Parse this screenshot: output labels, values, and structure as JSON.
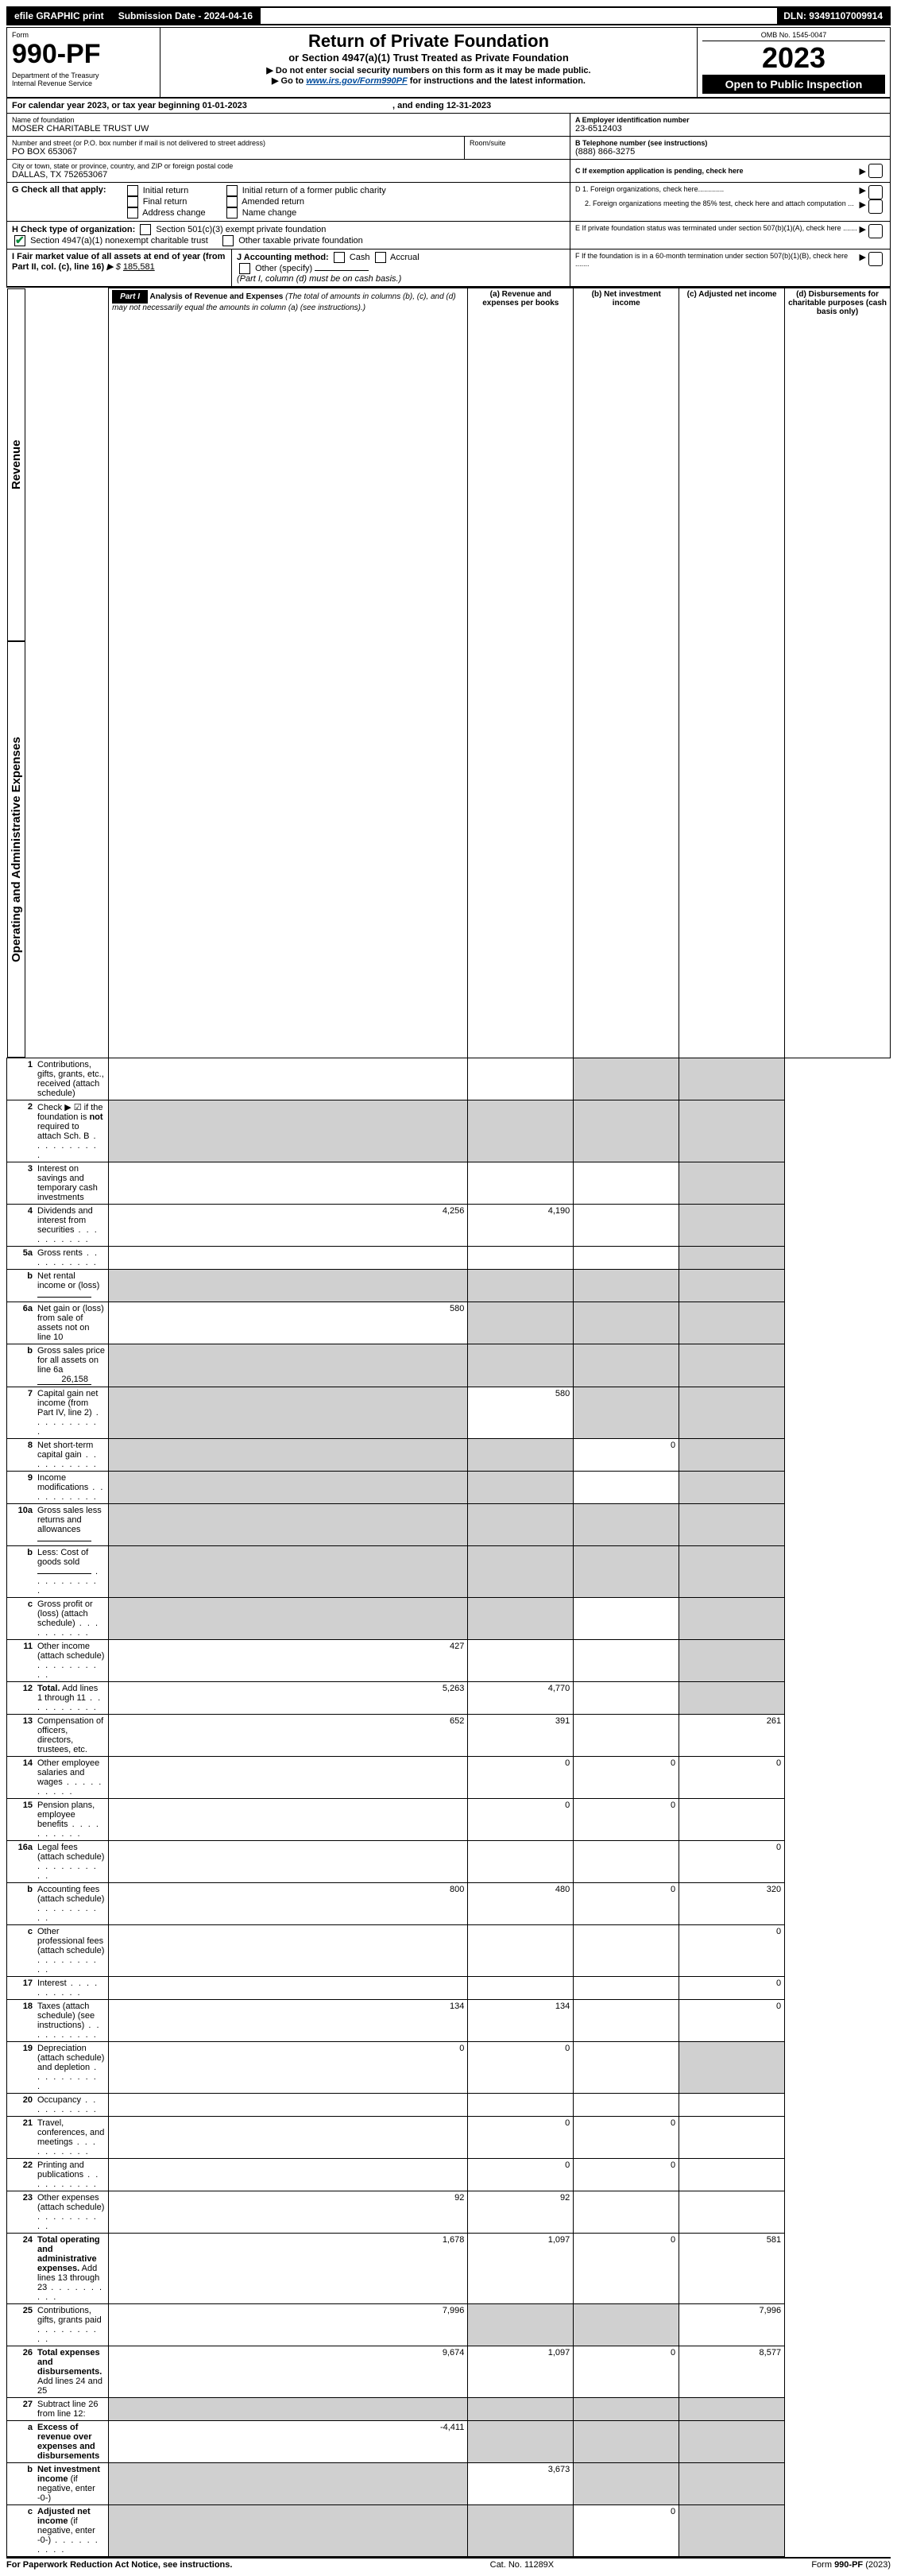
{
  "top": {
    "efile": "efile GRAPHIC print",
    "sub_lbl": "Submission Date - 2024-04-16",
    "dln": "DLN: 93491107009914"
  },
  "header": {
    "form_word": "Form",
    "form_num": "990-PF",
    "dept": "Department of the Treasury",
    "irs": "Internal Revenue Service",
    "title": "Return of Private Foundation",
    "subtitle": "or Section 4947(a)(1) Trust Treated as Private Foundation",
    "instr1": "▶ Do not enter social security numbers on this form as it may be made public.",
    "instr2_a": "▶ Go to ",
    "instr2_link": "www.irs.gov/Form990PF",
    "instr2_b": " for instructions and the latest information.",
    "omb": "OMB No. 1545-0047",
    "year": "2023",
    "open": "Open to Public Inspection"
  },
  "cal": {
    "line": "For calendar year 2023, or tax year beginning 01-01-2023",
    "mid": ", and ending 12-31-2023"
  },
  "addr": {
    "name_lbl": "Name of foundation",
    "name": "MOSER CHARITABLE TRUST UW",
    "street_lbl": "Number and street (or P.O. box number if mail is not delivered to street address)",
    "street": "PO BOX 653067",
    "room_lbl": "Room/suite",
    "city_lbl": "City or town, state or province, country, and ZIP or foreign postal code",
    "city": "DALLAS, TX  752653067"
  },
  "right": {
    "a_lbl": "A Employer identification number",
    "a_val": "23-6512403",
    "b_lbl": "B Telephone number (see instructions)",
    "b_val": "(888) 866-3275",
    "c_lbl": "C If exemption application is pending, check here",
    "d1": "D 1. Foreign organizations, check here.............",
    "d2": "2. Foreign organizations meeting the 85% test, check here and attach computation ...",
    "e": "E  If private foundation status was terminated under section 507(b)(1)(A), check here .......",
    "f": "F  If the foundation is in a 60-month termination under section 507(b)(1)(B), check here .......  "
  },
  "g": {
    "lbl": "G Check all that apply:",
    "o1": "Initial return",
    "o2": "Final return",
    "o3": "Address change",
    "o4": "Initial return of a former public charity",
    "o5": "Amended return",
    "o6": "Name change"
  },
  "h": {
    "lbl": "H Check type of organization:",
    "o1": "Section 501(c)(3) exempt private foundation",
    "o2": "Section 4947(a)(1) nonexempt charitable trust",
    "o3": "Other taxable private foundation"
  },
  "i": {
    "lbl": "I Fair market value of all assets at end of year (from Part II, col. (c), line 16)",
    "val": "185,581"
  },
  "j": {
    "lbl": "J Accounting method:",
    "cash": "Cash",
    "accr": "Accrual",
    "other": "Other (specify)",
    "note": "(Part I, column (d) must be on cash basis.)"
  },
  "part1": {
    "tag": "Part I",
    "title": "Analysis of Revenue and Expenses",
    "note": " (The total of amounts in columns (b), (c), and (d) may not necessarily equal the amounts in column (a) (see instructions).)",
    "col_a": "(a)   Revenue and expenses per books",
    "col_b": "(b)  Net investment income",
    "col_c": "(c)  Adjusted net income",
    "col_d": "(d)  Disbursements for charitable purposes (cash basis only)"
  },
  "side": {
    "rev": "Revenue",
    "exp": "Operating and Administrative Expenses"
  },
  "rows": [
    {
      "n": "1",
      "t": "Contributions, gifts, grants, etc., received (attach schedule)",
      "a": "",
      "b": "",
      "c": "shade",
      "d": "shade"
    },
    {
      "n": "2",
      "t": "Check ▶ ☑ if the foundation is <b>not</b> required to attach Sch. B",
      "a": "shade",
      "b": "shade",
      "c": "shade",
      "d": "shade",
      "dots": true
    },
    {
      "n": "3",
      "t": "Interest on savings and temporary cash investments",
      "a": "",
      "b": "",
      "c": "",
      "d": "shade"
    },
    {
      "n": "4",
      "t": "Dividends and interest from securities",
      "a": "4,256",
      "b": "4,190",
      "c": "",
      "d": "shade",
      "dots": true
    },
    {
      "n": "5a",
      "t": "Gross rents",
      "a": "",
      "b": "",
      "c": "",
      "d": "shade",
      "dots": true
    },
    {
      "n": "b",
      "t": "Net rental income or (loss)  ",
      "a": "shade",
      "b": "shade",
      "c": "shade",
      "d": "shade",
      "inline": true
    },
    {
      "n": "6a",
      "t": "Net gain or (loss) from sale of assets not on line 10",
      "a": "580",
      "b": "shade",
      "c": "shade",
      "d": "shade"
    },
    {
      "n": "b",
      "t": "Gross sales price for all assets on line 6a",
      "a": "shade",
      "b": "shade",
      "c": "shade",
      "d": "shade",
      "inline": true,
      "inlv": "26,158"
    },
    {
      "n": "7",
      "t": "Capital gain net income (from Part IV, line 2)",
      "a": "shade",
      "b": "580",
      "c": "shade",
      "d": "shade",
      "dots": true
    },
    {
      "n": "8",
      "t": "Net short-term capital gain",
      "a": "shade",
      "b": "shade",
      "c": "0",
      "d": "shade",
      "dots": true
    },
    {
      "n": "9",
      "t": "Income modifications",
      "a": "shade",
      "b": "shade",
      "c": "",
      "d": "shade",
      "dots": true
    },
    {
      "n": "10a",
      "t": "Gross sales less returns and allowances",
      "a": "shade",
      "b": "shade",
      "c": "shade",
      "d": "shade",
      "inline": true
    },
    {
      "n": "b",
      "t": "Less: Cost of goods sold",
      "a": "shade",
      "b": "shade",
      "c": "shade",
      "d": "shade",
      "inline": true,
      "dots": true
    },
    {
      "n": "c",
      "t": "Gross profit or (loss) (attach schedule)",
      "a": "shade",
      "b": "shade",
      "c": "",
      "d": "shade",
      "dots": true
    },
    {
      "n": "11",
      "t": "Other income (attach schedule)",
      "a": "427",
      "b": "",
      "c": "",
      "d": "shade",
      "dots": true
    },
    {
      "n": "12",
      "t": "<b>Total.</b> Add lines 1 through 11",
      "a": "5,263",
      "b": "4,770",
      "c": "",
      "d": "shade",
      "dots": true
    }
  ],
  "exp_rows": [
    {
      "n": "13",
      "t": "Compensation of officers, directors, trustees, etc.",
      "a": "652",
      "b": "391",
      "c": "",
      "d": "261"
    },
    {
      "n": "14",
      "t": "Other employee salaries and wages",
      "a": "",
      "b": "0",
      "c": "0",
      "d": "0",
      "dots": true
    },
    {
      "n": "15",
      "t": "Pension plans, employee benefits",
      "a": "",
      "b": "0",
      "c": "0",
      "d": "",
      "dots": true
    },
    {
      "n": "16a",
      "t": "Legal fees (attach schedule)",
      "a": "",
      "b": "",
      "c": "",
      "d": "0",
      "dots": true
    },
    {
      "n": "b",
      "t": "Accounting fees (attach schedule)",
      "a": "800",
      "b": "480",
      "c": "0",
      "d": "320",
      "dots": true
    },
    {
      "n": "c",
      "t": "Other professional fees (attach schedule)",
      "a": "",
      "b": "",
      "c": "",
      "d": "0",
      "dots": true
    },
    {
      "n": "17",
      "t": "Interest",
      "a": "",
      "b": "",
      "c": "",
      "d": "0",
      "dots": true
    },
    {
      "n": "18",
      "t": "Taxes (attach schedule) (see instructions)",
      "a": "134",
      "b": "134",
      "c": "",
      "d": "0",
      "dots": true
    },
    {
      "n": "19",
      "t": "Depreciation (attach schedule) and depletion",
      "a": "0",
      "b": "0",
      "c": "",
      "d": "shade",
      "dots": true
    },
    {
      "n": "20",
      "t": "Occupancy",
      "a": "",
      "b": "",
      "c": "",
      "d": "",
      "dots": true
    },
    {
      "n": "21",
      "t": "Travel, conferences, and meetings",
      "a": "",
      "b": "0",
      "c": "0",
      "d": "",
      "dots": true
    },
    {
      "n": "22",
      "t": "Printing and publications",
      "a": "",
      "b": "0",
      "c": "0",
      "d": "",
      "dots": true
    },
    {
      "n": "23",
      "t": "Other expenses (attach schedule)",
      "a": "92",
      "b": "92",
      "c": "",
      "d": "",
      "dots": true
    },
    {
      "n": "24",
      "t": "<b>Total operating and administrative expenses.</b> Add lines 13 through 23",
      "a": "1,678",
      "b": "1,097",
      "c": "0",
      "d": "581",
      "dots": true
    },
    {
      "n": "25",
      "t": "Contributions, gifts, grants paid",
      "a": "7,996",
      "b": "shade",
      "c": "shade",
      "d": "7,996",
      "dots": true
    },
    {
      "n": "26",
      "t": "<b>Total expenses and disbursements.</b> Add lines 24 and 25",
      "a": "9,674",
      "b": "1,097",
      "c": "0",
      "d": "8,577"
    },
    {
      "n": "27",
      "t": "Subtract line 26 from line 12:",
      "a": "shade",
      "b": "shade",
      "c": "shade",
      "d": "shade"
    },
    {
      "n": "a",
      "t": "<b>Excess of revenue over expenses and disbursements</b>",
      "a": "-4,411",
      "b": "shade",
      "c": "shade",
      "d": "shade"
    },
    {
      "n": "b",
      "t": "<b>Net investment income</b> (if negative, enter -0-)",
      "a": "shade",
      "b": "3,673",
      "c": "shade",
      "d": "shade"
    },
    {
      "n": "c",
      "t": "<b>Adjusted net income</b> (if negative, enter -0-)",
      "a": "shade",
      "b": "shade",
      "c": "0",
      "d": "shade",
      "dots": true
    }
  ],
  "footer": {
    "left": "For Paperwork Reduction Act Notice, see instructions.",
    "mid": "Cat. No. 11289X",
    "right": "Form 990-PF (2023)"
  }
}
